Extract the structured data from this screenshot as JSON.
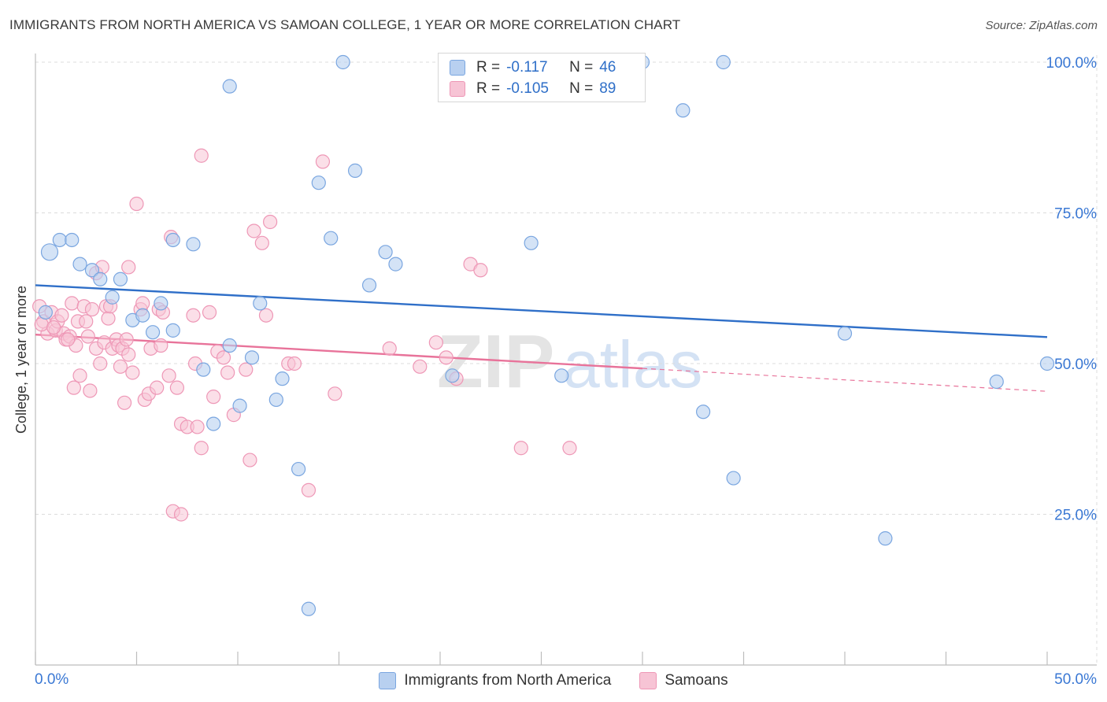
{
  "title": "IMMIGRANTS FROM NORTH AMERICA VS SAMOAN COLLEGE, 1 YEAR OR MORE CORRELATION CHART",
  "source": "Source: ZipAtlas.com",
  "watermark": {
    "zip": "ZIP",
    "atlas": "atlas"
  },
  "colors": {
    "blue": "#2f6fc8",
    "blue_fill": "#b8d0f0",
    "blue_stroke": "#7aa6e0",
    "pink": "#e8739a",
    "pink_fill": "#f7c4d5",
    "pink_stroke": "#ee97b6",
    "grid": "#dcdcdc",
    "tick_label": "#3a78d4"
  },
  "stats": {
    "rows": [
      {
        "r_label": "R =",
        "r_value": "-0.117",
        "n_label": "N =",
        "n_value": "46",
        "series": "blue"
      },
      {
        "r_label": "R =",
        "r_value": "-0.105",
        "n_label": "N =",
        "n_value": "89",
        "series": "pink"
      }
    ]
  },
  "legend": [
    {
      "label": "Immigrants from North America",
      "series": "blue"
    },
    {
      "label": "Samoans",
      "series": "pink"
    }
  ],
  "chart_data": {
    "type": "scatter",
    "title": "IMMIGRANTS FROM NORTH AMERICA VS SAMOAN COLLEGE, 1 YEAR OR MORE CORRELATION CHART",
    "xlabel": "",
    "ylabel": "College, 1 year or more",
    "xlim": [
      0,
      50
    ],
    "ylim": [
      0,
      103
    ],
    "x_tick_labels": [
      "0.0%",
      "50.0%"
    ],
    "y_ticks": [
      25,
      50,
      75,
      100
    ],
    "y_tick_labels": [
      "25.0%",
      "50.0%",
      "75.0%",
      "100.0%"
    ],
    "grid": true,
    "series": [
      {
        "name": "Immigrants from North America",
        "color": "blue",
        "trend": {
          "x": [
            0,
            50
          ],
          "y": [
            63.0,
            54.4
          ]
        },
        "points": [
          {
            "x": 0.7,
            "y": 68.5
          },
          {
            "x": 1.2,
            "y": 70.5
          },
          {
            "x": 1.8,
            "y": 70.5
          },
          {
            "x": 2.2,
            "y": 66.5
          },
          {
            "x": 2.8,
            "y": 65.5
          },
          {
            "x": 3.2,
            "y": 64.0
          },
          {
            "x": 3.8,
            "y": 61.0
          },
          {
            "x": 4.2,
            "y": 64.0
          },
          {
            "x": 4.8,
            "y": 57.2
          },
          {
            "x": 5.3,
            "y": 58.0
          },
          {
            "x": 5.8,
            "y": 55.2
          },
          {
            "x": 6.2,
            "y": 60.0
          },
          {
            "x": 6.8,
            "y": 55.5
          },
          {
            "x": 6.8,
            "y": 70.5
          },
          {
            "x": 7.8,
            "y": 69.8
          },
          {
            "x": 8.3,
            "y": 49.0
          },
          {
            "x": 8.8,
            "y": 40.0
          },
          {
            "x": 9.6,
            "y": 96.0
          },
          {
            "x": 9.6,
            "y": 53.0
          },
          {
            "x": 10.1,
            "y": 43.0
          },
          {
            "x": 10.7,
            "y": 51.0
          },
          {
            "x": 11.1,
            "y": 60.0
          },
          {
            "x": 11.9,
            "y": 44.0
          },
          {
            "x": 12.2,
            "y": 47.5
          },
          {
            "x": 13.0,
            "y": 32.5
          },
          {
            "x": 13.5,
            "y": 9.3
          },
          {
            "x": 14.0,
            "y": 80.0
          },
          {
            "x": 14.6,
            "y": 70.8
          },
          {
            "x": 15.2,
            "y": 100.0
          },
          {
            "x": 15.8,
            "y": 82.0
          },
          {
            "x": 16.5,
            "y": 63.0
          },
          {
            "x": 17.3,
            "y": 68.5
          },
          {
            "x": 17.8,
            "y": 66.5
          },
          {
            "x": 20.6,
            "y": 48.0
          },
          {
            "x": 24.5,
            "y": 70.0
          },
          {
            "x": 26.0,
            "y": 48.0
          },
          {
            "x": 30.0,
            "y": 100.0
          },
          {
            "x": 32.0,
            "y": 92.0
          },
          {
            "x": 33.0,
            "y": 42.0
          },
          {
            "x": 34.0,
            "y": 100.0
          },
          {
            "x": 34.5,
            "y": 31.0
          },
          {
            "x": 40.0,
            "y": 55.0
          },
          {
            "x": 42.0,
            "y": 21.0
          },
          {
            "x": 47.5,
            "y": 47.0
          },
          {
            "x": 50.0,
            "y": 50.0
          },
          {
            "x": 0.5,
            "y": 58.5
          }
        ]
      },
      {
        "name": "Samoans",
        "color": "pink",
        "trend": {
          "x": [
            0,
            30
          ],
          "y": [
            54.8,
            49.2
          ]
        },
        "trend_extension": {
          "x": [
            30,
            50
          ],
          "y": [
            49.2,
            45.4
          ]
        },
        "points": [
          {
            "x": 0.2,
            "y": 59.5
          },
          {
            "x": 0.4,
            "y": 57.0
          },
          {
            "x": 0.6,
            "y": 55.0
          },
          {
            "x": 0.8,
            "y": 58.5
          },
          {
            "x": 1.0,
            "y": 55.5
          },
          {
            "x": 1.1,
            "y": 57.0
          },
          {
            "x": 1.3,
            "y": 58.0
          },
          {
            "x": 1.4,
            "y": 55.0
          },
          {
            "x": 1.5,
            "y": 54.0
          },
          {
            "x": 1.7,
            "y": 54.5
          },
          {
            "x": 1.8,
            "y": 60.0
          },
          {
            "x": 1.9,
            "y": 46.0
          },
          {
            "x": 2.0,
            "y": 53.0
          },
          {
            "x": 2.1,
            "y": 57.0
          },
          {
            "x": 2.2,
            "y": 48.0
          },
          {
            "x": 2.4,
            "y": 59.5
          },
          {
            "x": 2.6,
            "y": 54.5
          },
          {
            "x": 2.7,
            "y": 45.5
          },
          {
            "x": 2.8,
            "y": 59.0
          },
          {
            "x": 3.0,
            "y": 65.0
          },
          {
            "x": 3.0,
            "y": 52.5
          },
          {
            "x": 3.2,
            "y": 50.0
          },
          {
            "x": 3.3,
            "y": 66.0
          },
          {
            "x": 3.4,
            "y": 53.5
          },
          {
            "x": 3.5,
            "y": 59.5
          },
          {
            "x": 3.6,
            "y": 57.5
          },
          {
            "x": 3.7,
            "y": 59.5
          },
          {
            "x": 3.8,
            "y": 52.5
          },
          {
            "x": 4.0,
            "y": 54.0
          },
          {
            "x": 4.1,
            "y": 53.0
          },
          {
            "x": 4.2,
            "y": 49.5
          },
          {
            "x": 4.3,
            "y": 52.5
          },
          {
            "x": 4.4,
            "y": 43.5
          },
          {
            "x": 4.5,
            "y": 54.0
          },
          {
            "x": 4.6,
            "y": 51.5
          },
          {
            "x": 4.6,
            "y": 66.0
          },
          {
            "x": 4.8,
            "y": 48.5
          },
          {
            "x": 5.0,
            "y": 76.5
          },
          {
            "x": 5.2,
            "y": 59.0
          },
          {
            "x": 5.3,
            "y": 60.0
          },
          {
            "x": 5.4,
            "y": 44.0
          },
          {
            "x": 5.6,
            "y": 45.0
          },
          {
            "x": 5.7,
            "y": 52.5
          },
          {
            "x": 6.0,
            "y": 46.0
          },
          {
            "x": 6.1,
            "y": 59.0
          },
          {
            "x": 6.2,
            "y": 53.0
          },
          {
            "x": 6.3,
            "y": 58.5
          },
          {
            "x": 6.6,
            "y": 48.0
          },
          {
            "x": 6.7,
            "y": 71.0
          },
          {
            "x": 6.8,
            "y": 25.5
          },
          {
            "x": 7.0,
            "y": 46.0
          },
          {
            "x": 7.2,
            "y": 40.0
          },
          {
            "x": 7.2,
            "y": 25.0
          },
          {
            "x": 7.5,
            "y": 39.5
          },
          {
            "x": 7.8,
            "y": 58.0
          },
          {
            "x": 7.9,
            "y": 50.0
          },
          {
            "x": 8.0,
            "y": 39.5
          },
          {
            "x": 8.2,
            "y": 84.5
          },
          {
            "x": 8.2,
            "y": 36.0
          },
          {
            "x": 8.6,
            "y": 58.5
          },
          {
            "x": 8.8,
            "y": 44.5
          },
          {
            "x": 9.0,
            "y": 52.0
          },
          {
            "x": 9.3,
            "y": 51.0
          },
          {
            "x": 9.5,
            "y": 48.5
          },
          {
            "x": 9.8,
            "y": 41.5
          },
          {
            "x": 10.4,
            "y": 49.0
          },
          {
            "x": 10.6,
            "y": 34.0
          },
          {
            "x": 10.8,
            "y": 72.0
          },
          {
            "x": 11.2,
            "y": 70.0
          },
          {
            "x": 11.4,
            "y": 58.0
          },
          {
            "x": 11.6,
            "y": 73.5
          },
          {
            "x": 12.5,
            "y": 50.0
          },
          {
            "x": 12.8,
            "y": 50.0
          },
          {
            "x": 13.5,
            "y": 29.0
          },
          {
            "x": 14.2,
            "y": 83.5
          },
          {
            "x": 14.8,
            "y": 45.0
          },
          {
            "x": 17.5,
            "y": 52.5
          },
          {
            "x": 19.0,
            "y": 49.5
          },
          {
            "x": 19.8,
            "y": 53.5
          },
          {
            "x": 20.3,
            "y": 51.0
          },
          {
            "x": 20.8,
            "y": 47.5
          },
          {
            "x": 21.5,
            "y": 66.5
          },
          {
            "x": 22.0,
            "y": 65.5
          },
          {
            "x": 24.0,
            "y": 36.0
          },
          {
            "x": 26.4,
            "y": 36.0
          },
          {
            "x": 0.3,
            "y": 56.5
          },
          {
            "x": 0.9,
            "y": 56.0
          },
          {
            "x": 1.6,
            "y": 54.0
          },
          {
            "x": 2.5,
            "y": 57.0
          }
        ]
      }
    ]
  }
}
